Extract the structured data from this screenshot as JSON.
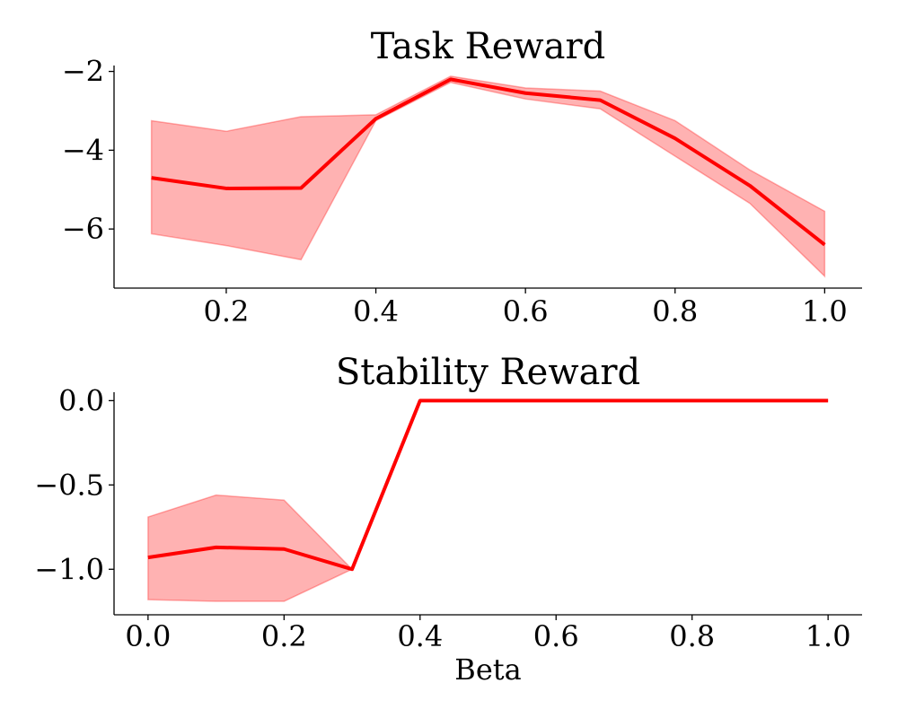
{
  "chart_data": [
    {
      "type": "line",
      "title": "Task Reward",
      "xlabel": "",
      "ylabel": "",
      "xlim": [
        0.05,
        1.05
      ],
      "ylim": [
        -7.5,
        -1.85
      ],
      "xticks": [
        0.2,
        0.4,
        0.6,
        0.8,
        1.0
      ],
      "xtick_labels": [
        "0.2",
        "0.4",
        "0.6",
        "0.8",
        "1.0"
      ],
      "yticks": [
        -2,
        -4,
        -6
      ],
      "ytick_labels": [
        "−2",
        "−4",
        "−6"
      ],
      "grid": false,
      "color": "#ff0000",
      "band_color": "#ff0000",
      "x": [
        0.1,
        0.2,
        0.3,
        0.4,
        0.5,
        0.6,
        0.7,
        0.8,
        0.9,
        1.0
      ],
      "mean": [
        -4.7,
        -4.97,
        -4.96,
        -3.2,
        -2.2,
        -2.55,
        -2.73,
        -3.7,
        -4.9,
        -6.4
      ],
      "upper": [
        -3.25,
        -3.52,
        -3.15,
        -3.1,
        -2.12,
        -2.42,
        -2.5,
        -3.25,
        -4.5,
        -5.55
      ],
      "lower": [
        -6.12,
        -6.42,
        -6.78,
        -3.25,
        -2.28,
        -2.7,
        -2.95,
        -4.15,
        -5.35,
        -7.2
      ]
    },
    {
      "type": "line",
      "title": "Stability Reward",
      "xlabel": "Beta",
      "ylabel": "",
      "xlim": [
        -0.05,
        1.05
      ],
      "ylim": [
        -1.27,
        0.05
      ],
      "xticks": [
        0.0,
        0.2,
        0.4,
        0.6,
        0.8,
        1.0
      ],
      "xtick_labels": [
        "0.0",
        "0.2",
        "0.4",
        "0.6",
        "0.8",
        "1.0"
      ],
      "yticks": [
        0.0,
        -0.5,
        -1.0
      ],
      "ytick_labels": [
        "0.0",
        "−0.5",
        "−1.0"
      ],
      "grid": false,
      "color": "#ff0000",
      "band_color": "#ff0000",
      "x": [
        0.0,
        0.1,
        0.2,
        0.3,
        0.4,
        0.5,
        0.6,
        0.7,
        0.8,
        0.9,
        1.0
      ],
      "mean": [
        -0.93,
        -0.87,
        -0.88,
        -1.0,
        0.0,
        0.0,
        0.0,
        0.0,
        0.0,
        0.0,
        0.0
      ],
      "upper": [
        -0.69,
        -0.56,
        -0.59,
        -1.0,
        0.0,
        0.0,
        0.0,
        0.0,
        0.0,
        0.0,
        0.0
      ],
      "lower": [
        -1.18,
        -1.19,
        -1.19,
        -1.0,
        0.0,
        0.0,
        0.0,
        0.0,
        0.0,
        0.0,
        0.0
      ]
    }
  ]
}
